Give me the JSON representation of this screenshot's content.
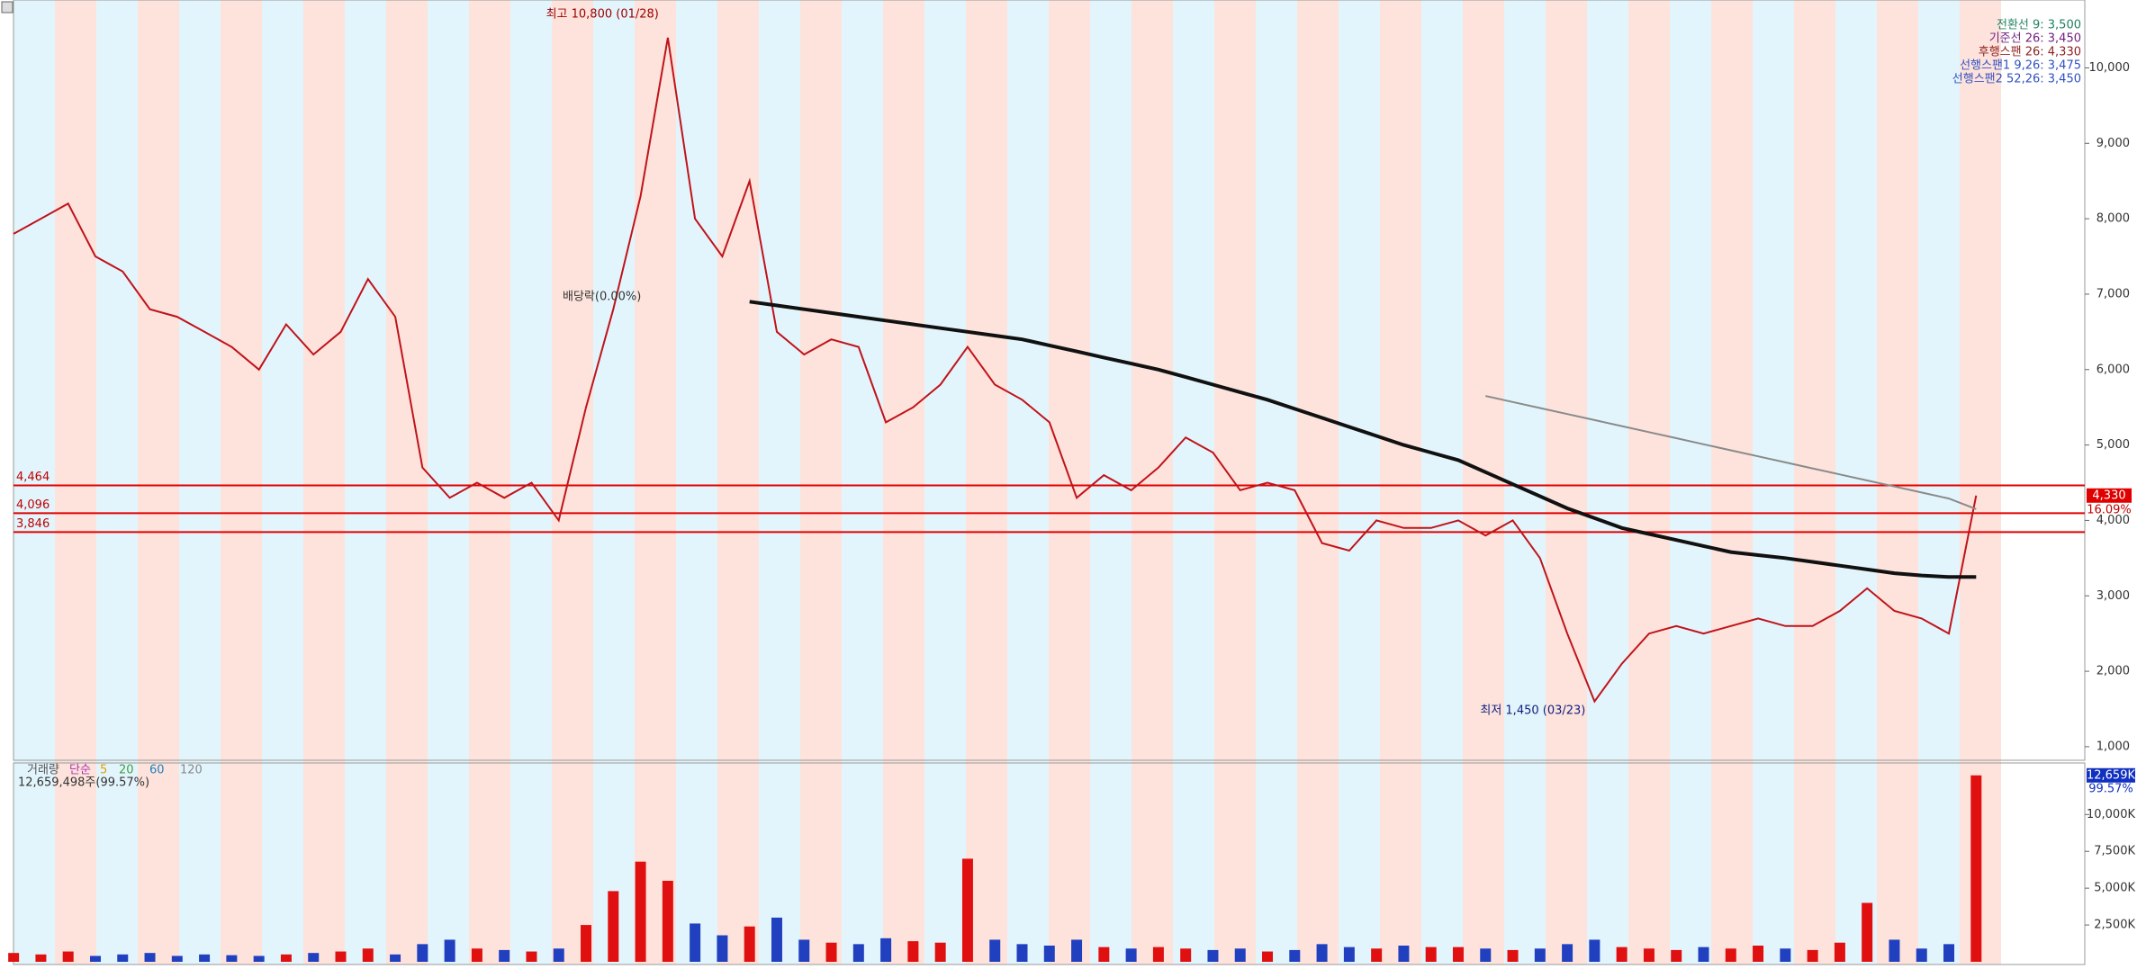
{
  "chart_data": [
    {
      "type": "line",
      "annotations": [
        "최고 10,800 (01/28)",
        "최저 1,450 (03/23)",
        "배당락(0.00%)"
      ],
      "legend_lines": [
        "전환선 9: 3,500",
        "기준선 26: 3,450",
        "후행스팬 26: 4,330",
        "선행스팬1 9,26: 3,475",
        "선행스팬2 52,26: 3,450"
      ],
      "last_price": {
        "value": 4330,
        "label": "4,330"
      },
      "change_label": "16.09%",
      "ylim": [
        820,
        10900
      ],
      "yticks": [
        {
          "value": 1000,
          "label": "1,000"
        },
        {
          "value": 2000,
          "label": "2,000"
        },
        {
          "value": 3000,
          "label": "3,000"
        },
        {
          "value": 4000,
          "label": "4,000"
        },
        {
          "value": 5000,
          "label": "5,000"
        },
        {
          "value": 6000,
          "label": "6,000"
        },
        {
          "value": 7000,
          "label": "7,000"
        },
        {
          "value": 8000,
          "label": "8,000"
        },
        {
          "value": 9000,
          "label": "9,000"
        },
        {
          "value": 10000,
          "label": "10,000"
        }
      ],
      "levels": [
        {
          "value": 4464,
          "label": "4,464"
        },
        {
          "value": 4096,
          "label": "4,096"
        },
        {
          "value": 3846,
          "label": "3,846"
        }
      ],
      "series": [
        {
          "color": "#c0131a",
          "values": [
            7800,
            8000,
            8200,
            7500,
            7300,
            6800,
            6700,
            6500,
            6300,
            6000,
            6600,
            6200,
            6500,
            7200,
            6700,
            4700,
            4300,
            4500,
            4300,
            4500,
            4000,
            5500,
            6800,
            8300,
            10400,
            8000,
            7500,
            8500,
            6500,
            6200,
            6400,
            6300,
            5300,
            5500,
            5800,
            6300,
            5800,
            5600,
            5300,
            4300,
            4600,
            4400,
            4700,
            5100,
            4900,
            4400,
            4500,
            4400,
            3700,
            3600,
            4000,
            3900,
            3900,
            4000,
            3800,
            4000,
            3500,
            2500,
            1600,
            2100,
            2500,
            2600,
            2500,
            2600,
            2700,
            2600,
            2600,
            2800,
            3100,
            2800,
            2700,
            2500,
            4330
          ]
        },
        {
          "color": "#111111",
          "values": [
            null,
            null,
            null,
            null,
            null,
            null,
            null,
            null,
            null,
            null,
            null,
            null,
            null,
            null,
            null,
            null,
            null,
            null,
            null,
            null,
            null,
            null,
            null,
            null,
            null,
            null,
            null,
            6900,
            6850,
            6800,
            6750,
            6700,
            6650,
            6600,
            6550,
            6500,
            6450,
            6400,
            6320,
            6240,
            6160,
            6080,
            6000,
            5900,
            5800,
            5700,
            5600,
            5480,
            5360,
            5240,
            5120,
            5000,
            4900,
            4800,
            4640,
            4480,
            4320,
            4160,
            4030,
            3900,
            3820,
            3740,
            3660,
            3580,
            3540,
            3500,
            3450,
            3400,
            3350,
            3300,
            3270,
            3250,
            3250
          ]
        },
        {
          "color": "#8a8a8a",
          "values": [
            null,
            null,
            null,
            null,
            null,
            null,
            null,
            null,
            null,
            null,
            null,
            null,
            null,
            null,
            null,
            null,
            null,
            null,
            null,
            null,
            null,
            null,
            null,
            null,
            null,
            null,
            null,
            null,
            null,
            null,
            null,
            null,
            null,
            null,
            null,
            null,
            null,
            null,
            null,
            null,
            null,
            null,
            null,
            null,
            null,
            null,
            null,
            null,
            null,
            null,
            null,
            null,
            null,
            null,
            5650,
            5570,
            5490,
            5410,
            5330,
            5250,
            5170,
            5090,
            5010,
            4930,
            4850,
            4770,
            4690,
            4610,
            4530,
            4450,
            4370,
            4290,
            4150
          ]
        }
      ]
    },
    {
      "type": "bar",
      "legend": [
        "거래량",
        "단순",
        "5",
        "20",
        "60",
        "120"
      ],
      "total_label": "12,659,498주(99.57%)",
      "last_value": {
        "value": 12659,
        "label": "12,659K"
      },
      "change_label": "99.57%",
      "ylim": [
        0,
        13500
      ],
      "yticks": [
        {
          "value": 2500,
          "label": "2,500K"
        },
        {
          "value": 5000,
          "label": "5,000K"
        },
        {
          "value": 7500,
          "label": "7,500K"
        },
        {
          "value": 10000,
          "label": "10,000K"
        }
      ],
      "values": [
        600,
        500,
        700,
        400,
        500,
        600,
        400,
        500,
        450,
        400,
        500,
        600,
        700,
        900,
        500,
        1200,
        1500,
        900,
        800,
        700,
        900,
        2500,
        4800,
        6800,
        5500,
        2600,
        1800,
        2400,
        3000,
        1500,
        1300,
        1200,
        1600,
        1400,
        1300,
        7000,
        1500,
        1200,
        1100,
        1500,
        1000,
        900,
        1000,
        900,
        800,
        900,
        700,
        800,
        1200,
        1000,
        900,
        1100,
        1000,
        1000,
        900,
        800,
        900,
        1200,
        1500,
        1000,
        900,
        800,
        1000,
        900,
        1100,
        900,
        800,
        1300,
        4000,
        1500,
        900,
        1200,
        12659
      ]
    }
  ]
}
